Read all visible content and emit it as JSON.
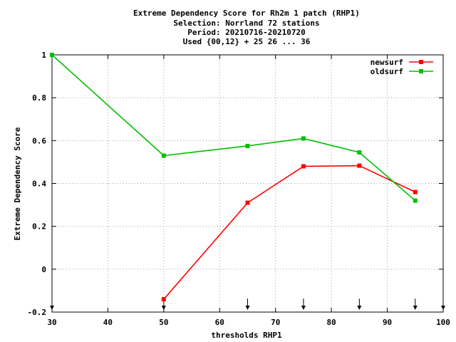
{
  "chart_data": {
    "type": "line",
    "title_lines": [
      "Extreme Dependency Score  for Rh2m 1 patch (RHP1)",
      "Selection: Norrland     72 stations",
      "Period: 20210716-20210720",
      "Used {00,12} + 25 26 ... 36"
    ],
    "xlabel": "thresholds RHP1",
    "ylabel": "Extreme Dependency Score",
    "xlim": [
      30,
      100
    ],
    "ylim": [
      -0.2,
      1
    ],
    "xticks": [
      30,
      40,
      50,
      60,
      70,
      80,
      90,
      100
    ],
    "yticks": [
      -0.2,
      0,
      0.2,
      0.4,
      0.6,
      0.8,
      1
    ],
    "ytick_labels": [
      "-0.2",
      "0",
      "0.2",
      "0.4",
      "0.6",
      "0.8",
      "1"
    ],
    "grid": true,
    "legend_position": "top-right",
    "series": [
      {
        "name": "newsurf",
        "color": "#ff0000",
        "x": [
          50,
          65,
          75,
          85,
          95
        ],
        "y": [
          -0.14,
          0.31,
          0.48,
          0.483,
          0.36
        ]
      },
      {
        "name": "oldsurf",
        "color": "#00c000",
        "x": [
          30,
          50,
          65,
          75,
          85,
          95
        ],
        "y": [
          1.0,
          0.53,
          0.575,
          0.61,
          0.545,
          0.32
        ]
      }
    ],
    "arrow_markers_x": [
      30,
      50,
      65,
      75,
      85,
      95,
      100
    ]
  }
}
